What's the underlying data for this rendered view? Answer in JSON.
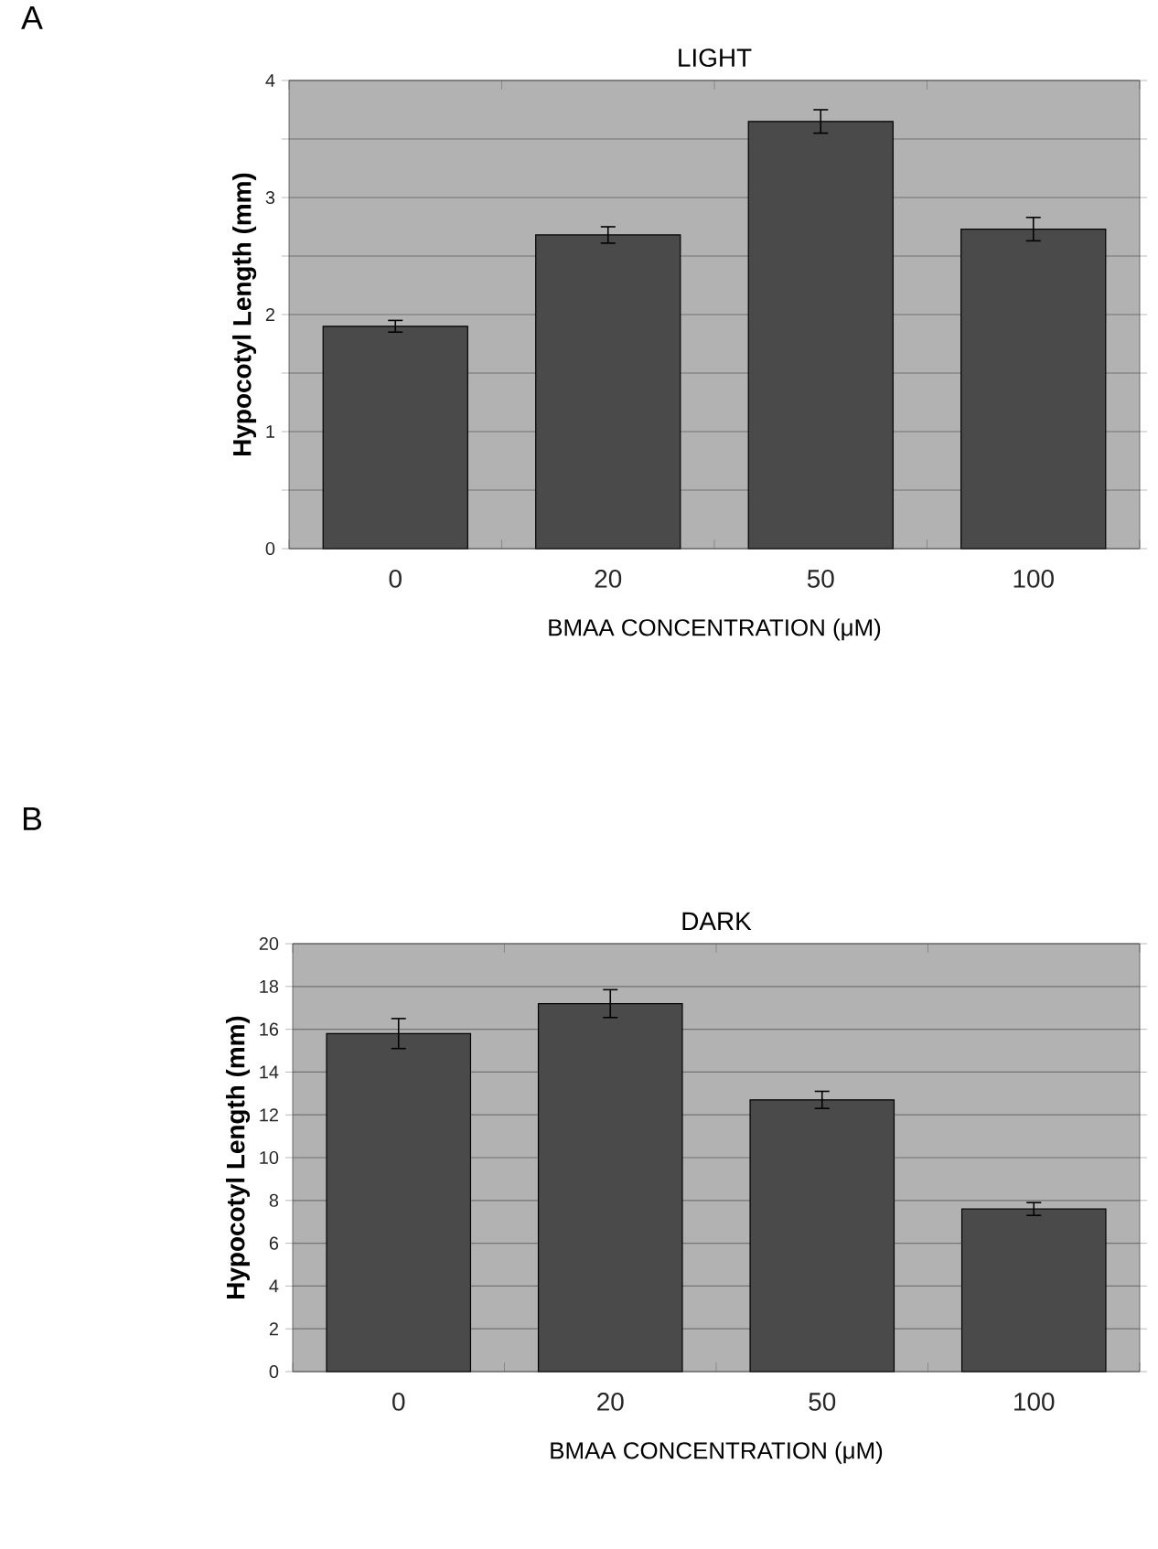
{
  "chart_data": [
    {
      "type": "bar",
      "title": "LIGHT",
      "xlabel": "BMAA CONCENTRATION (μM)",
      "ylabel": "Hypocotyl Length (mm)",
      "annotations": [
        "A"
      ],
      "categories": [
        "0",
        "20",
        "50",
        "100"
      ],
      "values": [
        1.9,
        2.68,
        3.65,
        2.73
      ],
      "errors": [
        0.05,
        0.07,
        0.1,
        0.1
      ],
      "color": "#4a4a4a",
      "ylim": [
        0,
        4
      ],
      "yticks": [
        0,
        {
          "value": 0.5,
          "label": null
        },
        1,
        {
          "value": 1.5,
          "label": null
        },
        2,
        {
          "value": 2.5,
          "label": null
        },
        3,
        {
          "value": 3.5,
          "label": null
        },
        4
      ],
      "grid": "y"
    },
    {
      "type": "bar",
      "title": "DARK",
      "xlabel": "BMAA CONCENTRATION (μM)",
      "ylabel": "Hypocotyl Length (mm)",
      "annotations": [
        "B"
      ],
      "categories": [
        "0",
        "20",
        "50",
        "100"
      ],
      "values": [
        15.8,
        17.2,
        12.7,
        7.6
      ],
      "errors": [
        0.7,
        0.65,
        0.4,
        0.3
      ],
      "color": "#4a4a4a",
      "ylim": [
        0,
        20
      ],
      "yticks": [
        0,
        2,
        4,
        6,
        8,
        10,
        12,
        14,
        16,
        18,
        20
      ],
      "grid": "y"
    }
  ]
}
